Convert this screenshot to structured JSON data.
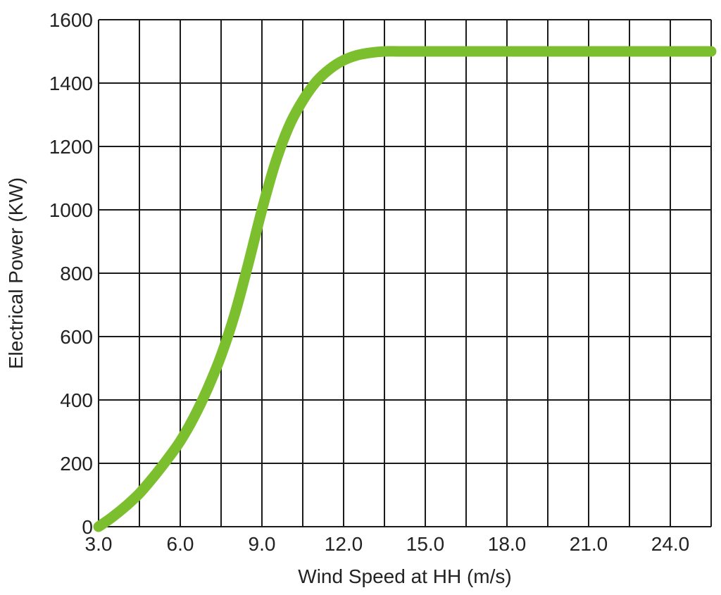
{
  "chart_data": {
    "type": "line",
    "title": "",
    "xlabel": "Wind Speed at HH (m/s)",
    "ylabel": "Electrical Power (KW)",
    "xlim": [
      3.0,
      25.5
    ],
    "ylim": [
      0,
      1600
    ],
    "grid": true,
    "legend": "none",
    "x_ticks": [
      3.0,
      4.5,
      6.0,
      7.5,
      9.0,
      10.5,
      12.0,
      13.5,
      15.0,
      16.5,
      18.0,
      19.5,
      21.0,
      22.5,
      24.0,
      25.5
    ],
    "x_tick_labels": [
      "3.0",
      "6.0",
      "9.0",
      "12.0",
      "15.0",
      "18.0",
      "21.0",
      "24.0"
    ],
    "x_tick_label_values": [
      3.0,
      6.0,
      9.0,
      12.0,
      15.0,
      18.0,
      21.0,
      24.0
    ],
    "y_ticks": [
      0,
      200,
      400,
      600,
      800,
      1000,
      1200,
      1400,
      1600
    ],
    "y_tick_labels": [
      "0",
      "200",
      "400",
      "600",
      "800",
      "1000",
      "1200",
      "1400",
      "1600"
    ],
    "series": [
      {
        "color": "#7cbf2e",
        "x": [
          3.0,
          3.5,
          4.0,
          4.5,
          5.0,
          5.5,
          6.0,
          6.5,
          7.0,
          7.5,
          8.0,
          8.5,
          9.0,
          9.5,
          10.0,
          10.5,
          11.0,
          11.5,
          12.0,
          12.5,
          13.0,
          13.5,
          14.0,
          14.5,
          15.0,
          16.0,
          17.0,
          18.0,
          19.0,
          20.0,
          21.0,
          22.0,
          23.0,
          24.0,
          25.0,
          25.5
        ],
        "y": [
          0,
          30,
          65,
          105,
          155,
          210,
          270,
          345,
          435,
          540,
          670,
          830,
          1000,
          1150,
          1265,
          1345,
          1405,
          1445,
          1472,
          1488,
          1496,
          1500,
          1500,
          1500,
          1500,
          1500,
          1500,
          1500,
          1500,
          1500,
          1500,
          1500,
          1500,
          1500,
          1500,
          1500
        ]
      }
    ]
  }
}
